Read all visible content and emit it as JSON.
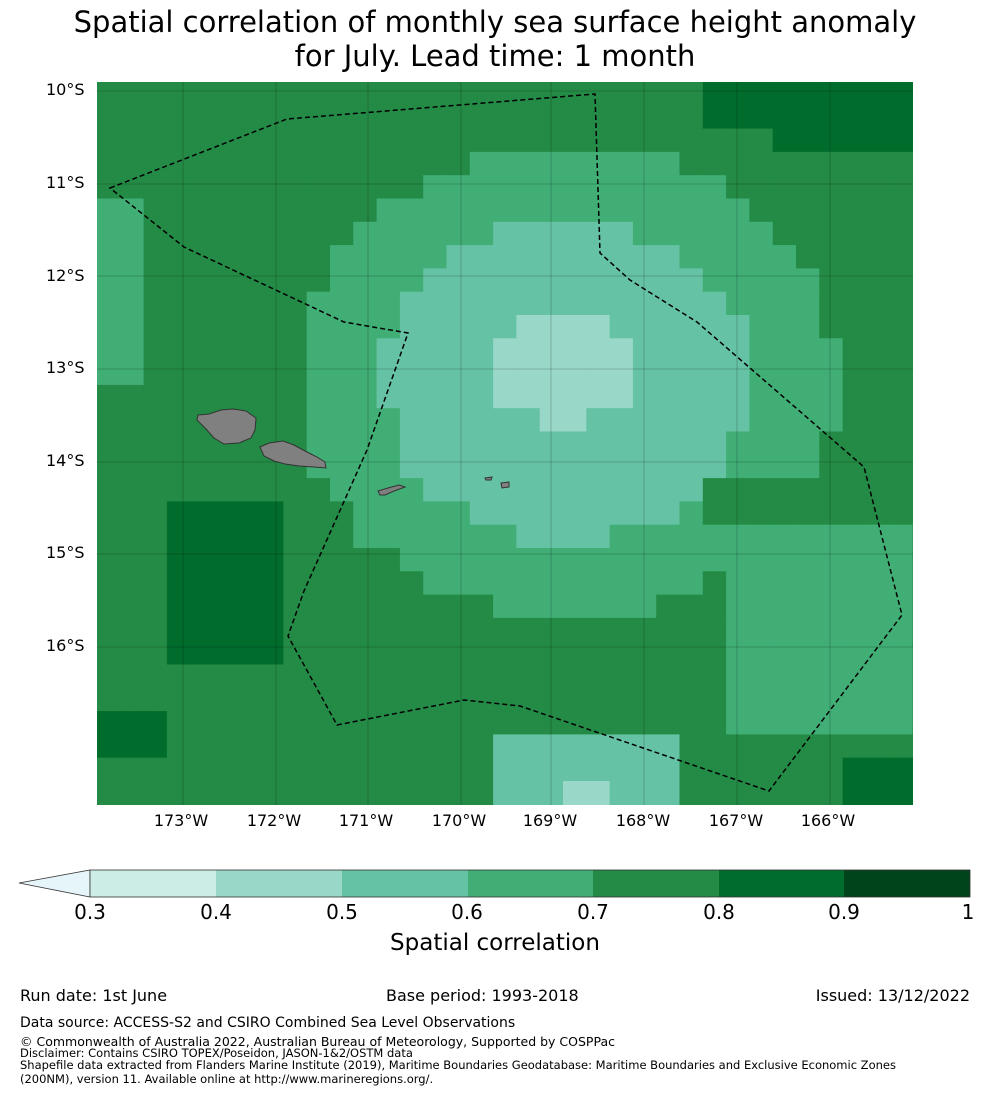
{
  "title_line1": "Spatial correlation of monthly sea surface height anomaly",
  "title_line2": "for July. Lead time: 1 month",
  "y_ticks": [
    "10°S",
    "11°S",
    "12°S",
    "13°S",
    "14°S",
    "15°S",
    "16°S"
  ],
  "x_ticks": [
    "173°W",
    "172°W",
    "171°W",
    "170°W",
    "169°W",
    "168°W",
    "167°W",
    "166°W"
  ],
  "colorbar": {
    "label": "Spatial correlation",
    "ticks": [
      "0.3",
      "0.4",
      "0.5",
      "0.6",
      "0.7",
      "0.8",
      "0.9",
      "1"
    ],
    "colors": [
      "#ccece6",
      "#99d8c9",
      "#66c2a4",
      "#41ae76",
      "#238b45",
      "#006d2c",
      "#00441b"
    ],
    "extend_color": "#e5f5f9"
  },
  "footer": {
    "run_date": "Run date: 1st June",
    "base_period": "Base period: 1993-2018",
    "issued": "Issued: 13/12/2022",
    "data_source": "Data source: ACCESS-S2 and CSIRO Combined Sea Level Observations",
    "copyright": "© Commonwealth of Australia 2022, Australian Bureau of Meteorology, Supported by COSPPac",
    "disclaimer": "Disclaimer: Contains CSIRO TOPEX/Poseidon, JASON-1&2/OSTM data",
    "shapefile1": "Shapefile data extracted from Flanders Marine Institute (2019), Maritime Boundaries Geodatabase: Maritime Boundaries and Exclusive Economic Zones",
    "shapefile2": "(200NM), version 11. Available online at http://www.marineregions.org/."
  }
}
